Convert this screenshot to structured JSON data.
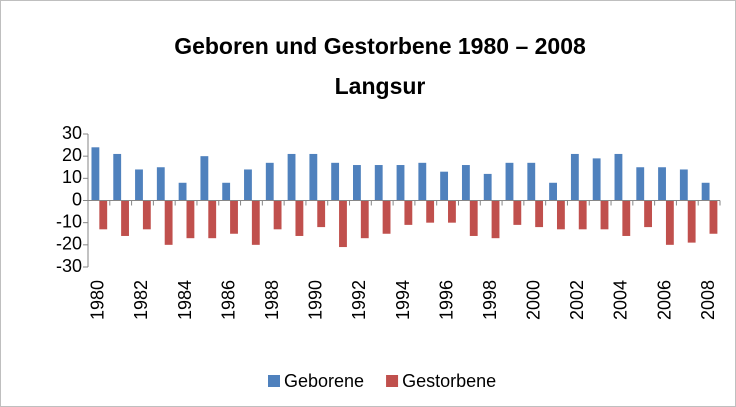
{
  "chart_data": {
    "type": "bar",
    "title": "Geboren und Gestorbene 1980 – 2008",
    "subtitle": "Langsur",
    "categories": [
      "1980",
      null,
      "1982",
      null,
      "1984",
      null,
      "1986",
      null,
      "1988",
      null,
      "1990",
      null,
      "1992",
      null,
      "1994",
      null,
      "1996",
      null,
      "1998",
      null,
      "2000",
      null,
      "2002",
      null,
      "2004",
      null,
      "2006",
      null,
      "2008"
    ],
    "series": [
      {
        "name": "Geborene",
        "color": "#4f81bd",
        "values": [
          24,
          21,
          14,
          15,
          8,
          20,
          8,
          14,
          17,
          21,
          21,
          17,
          16,
          16,
          16,
          17,
          13,
          16,
          12,
          17,
          17,
          8,
          21,
          19,
          21,
          15,
          15,
          14,
          8
        ]
      },
      {
        "name": "Gestorbene",
        "color": "#c0504d",
        "values": [
          -13,
          -16,
          -13,
          -20,
          -17,
          -17,
          -15,
          -20,
          -13,
          -16,
          -12,
          -21,
          -17,
          -15,
          -11,
          -10,
          -10,
          -16,
          -17,
          -11,
          -12,
          -13,
          -13,
          -13,
          -16,
          -12,
          -20,
          -19,
          -15
        ]
      }
    ],
    "ylim": [
      -30,
      30
    ],
    "yticks": [
      -30,
      -20,
      -10,
      0,
      10,
      20,
      30
    ],
    "grid": false,
    "legend": "bottom"
  }
}
